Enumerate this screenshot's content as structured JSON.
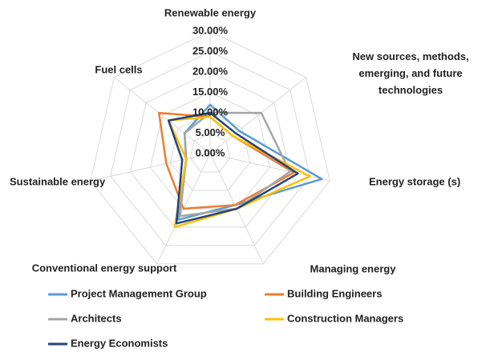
{
  "chart_data": {
    "type": "radar",
    "categories": [
      "Renewable energy",
      "New sources, methods, emerging, and future technologies",
      "Energy storage (s)",
      "Managing energy",
      "Conventional energy support",
      "Sustainable energy",
      "Fuel cells"
    ],
    "ylim": [
      0,
      30
    ],
    "yticks": [
      {
        "value": 0,
        "label": "0.00%"
      },
      {
        "value": 5,
        "label": "5.00%"
      },
      {
        "value": 10,
        "label": "10.00%"
      },
      {
        "value": 15,
        "label": "15.00%"
      },
      {
        "value": 20,
        "label": "20.00%"
      },
      {
        "value": 25,
        "label": "25.00%"
      },
      {
        "value": 30,
        "label": "30.00%"
      }
    ],
    "grid": true,
    "legend": "bottom",
    "series": [
      {
        "name": "Project Management Group",
        "color": "#5b9bd5",
        "values": [
          12,
          9,
          28,
          14,
          18,
          6,
          8
        ]
      },
      {
        "name": "Building Engineers",
        "color": "#ed7d31",
        "values": [
          9,
          7,
          21,
          14,
          15,
          11,
          16
        ]
      },
      {
        "name": "Architects",
        "color": "#a5a5a5",
        "values": [
          10,
          16,
          20,
          15,
          17,
          6,
          8
        ]
      },
      {
        "name": "Construction Managers",
        "color": "#ffc000",
        "values": [
          9,
          7,
          25,
          15,
          20,
          6,
          13
        ]
      },
      {
        "name": "Energy Economists",
        "color": "#264478",
        "values": [
          10,
          8,
          22,
          15,
          19,
          7,
          13
        ]
      }
    ]
  }
}
